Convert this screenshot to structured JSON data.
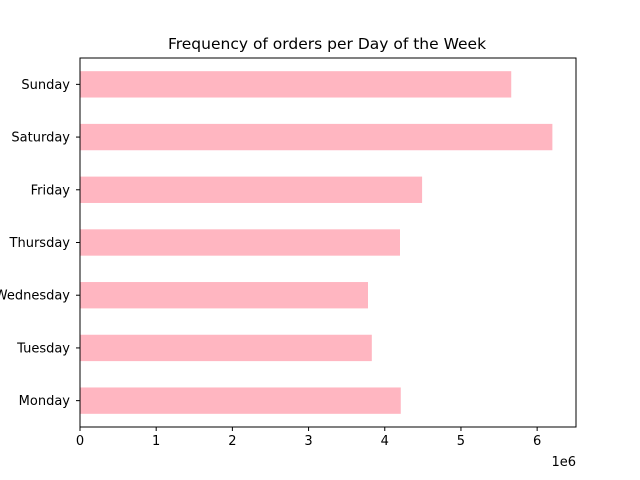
{
  "chart_data": {
    "type": "bar",
    "orientation": "horizontal",
    "title": "Frequency of orders per Day of the Week",
    "xlabel": "",
    "ylabel": "",
    "x_scale_label": "1e6",
    "categories": [
      "Monday",
      "Tuesday",
      "Wednesday",
      "Thursday",
      "Friday",
      "Saturday",
      "Sunday"
    ],
    "values": [
      4210000,
      3830000,
      3780000,
      4200000,
      4490000,
      6200000,
      5660000
    ],
    "xlim": [
      0,
      6510000
    ],
    "xticks": [
      0,
      1000000,
      2000000,
      3000000,
      4000000,
      5000000,
      6000000
    ],
    "xtick_labels": [
      "0",
      "1",
      "2",
      "3",
      "4",
      "5",
      "6"
    ],
    "bar_color": "#ffb6c1",
    "grid": false,
    "legend": "none"
  }
}
